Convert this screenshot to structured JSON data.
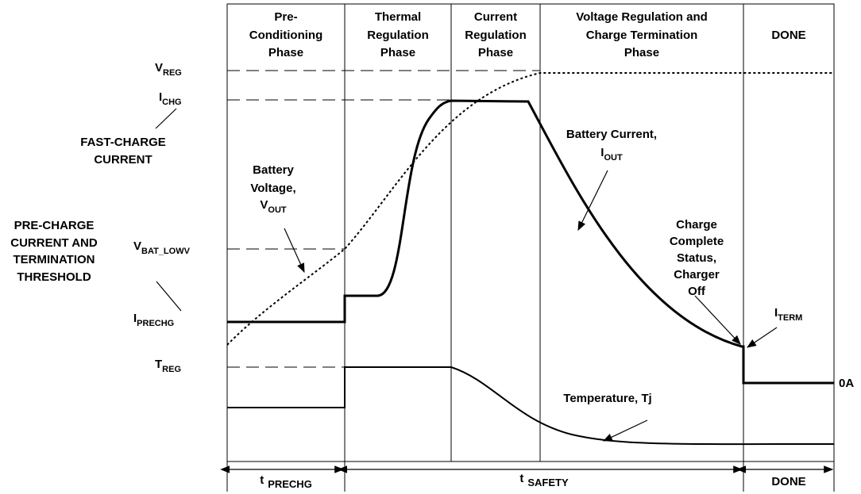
{
  "phases": [
    {
      "lines": [
        "Pre-",
        "Conditioning",
        "Phase"
      ]
    },
    {
      "lines": [
        "Thermal",
        "Regulation",
        "Phase"
      ]
    },
    {
      "lines": [
        "Current",
        "Regulation",
        "Phase"
      ]
    },
    {
      "lines": [
        "Voltage Regulation and",
        "Charge Termination",
        "Phase"
      ]
    },
    {
      "lines": [
        "DONE"
      ]
    }
  ],
  "levels": {
    "vreg": {
      "main": "V",
      "sub": "REG"
    },
    "ichg": {
      "main": "I",
      "sub": "CHG"
    },
    "vbat_lowv": {
      "main": "V",
      "sub": "BAT_LOWV"
    },
    "iprechg": {
      "main": "I",
      "sub": "PRECHG"
    },
    "treg": {
      "main": "T",
      "sub": "REG"
    },
    "iterm": {
      "main": "I",
      "sub": "TERM"
    },
    "zero": "0A"
  },
  "notes": {
    "fast_charge": [
      "FAST-CHARGE",
      "CURRENT"
    ],
    "pre_charge": [
      "PRE-CHARGE",
      "CURRENT AND",
      "TERMINATION",
      "THRESHOLD"
    ],
    "battery_voltage": {
      "lines": [
        "Battery",
        "Voltage,"
      ],
      "symbol": {
        "main": "V",
        "sub": "OUT"
      }
    },
    "battery_current": {
      "lines": [
        "Battery Current,"
      ],
      "symbol": {
        "main": "I",
        "sub": "OUT"
      }
    },
    "charge_complete": [
      "Charge",
      "Complete",
      "Status,",
      "Charger",
      "Off"
    ],
    "temperature": "Temperature,  Tj"
  },
  "timers": [
    {
      "main": "t",
      "sub": "PRECHG"
    },
    {
      "main": "t",
      "sub": "SAFETY"
    },
    {
      "main": "DONE"
    }
  ]
}
